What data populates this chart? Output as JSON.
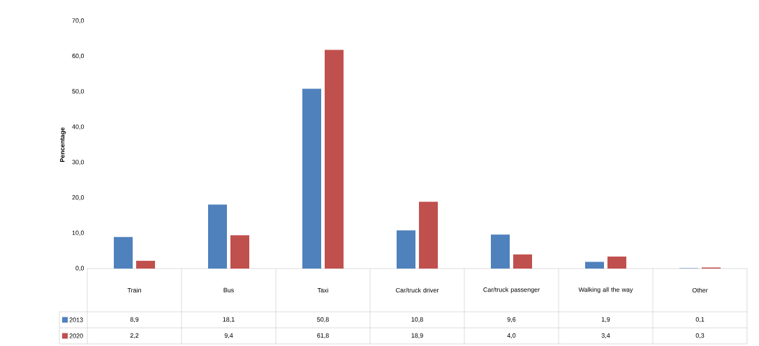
{
  "chart_data": {
    "type": "bar",
    "ylabel": "Pencentage",
    "categories": [
      "Train",
      "Bus",
      "Taxi",
      "Car/truck driver",
      "Car/truck passenger",
      "Walking all the way",
      "Other"
    ],
    "series": [
      {
        "name": "2013",
        "color": "#4f81bd",
        "values": [
          8.9,
          18.1,
          50.8,
          10.8,
          9.6,
          1.9,
          0.1
        ],
        "value_labels": [
          "8,9",
          "18,1",
          "50,8",
          "10,8",
          "9,6",
          "1,9",
          "0,1"
        ]
      },
      {
        "name": "2020",
        "color": "#c0504d",
        "values": [
          2.2,
          9.4,
          61.8,
          18.9,
          4.0,
          3.4,
          0.3
        ],
        "value_labels": [
          "2,2",
          "9,4",
          "61,8",
          "18,9",
          "4,0",
          "3,4",
          "0,3"
        ]
      }
    ],
    "ylim": [
      0,
      70
    ],
    "yticks": [
      {
        "value": 0,
        "label": "0,0"
      },
      {
        "value": 10,
        "label": "10,0"
      },
      {
        "value": 20,
        "label": "20,0"
      },
      {
        "value": 30,
        "label": "30,0"
      },
      {
        "value": 40,
        "label": "40,0"
      },
      {
        "value": 50,
        "label": "50,0"
      },
      {
        "value": 60,
        "label": "60,0"
      },
      {
        "value": 70,
        "label": "70,0"
      }
    ],
    "legend": "bottom"
  }
}
